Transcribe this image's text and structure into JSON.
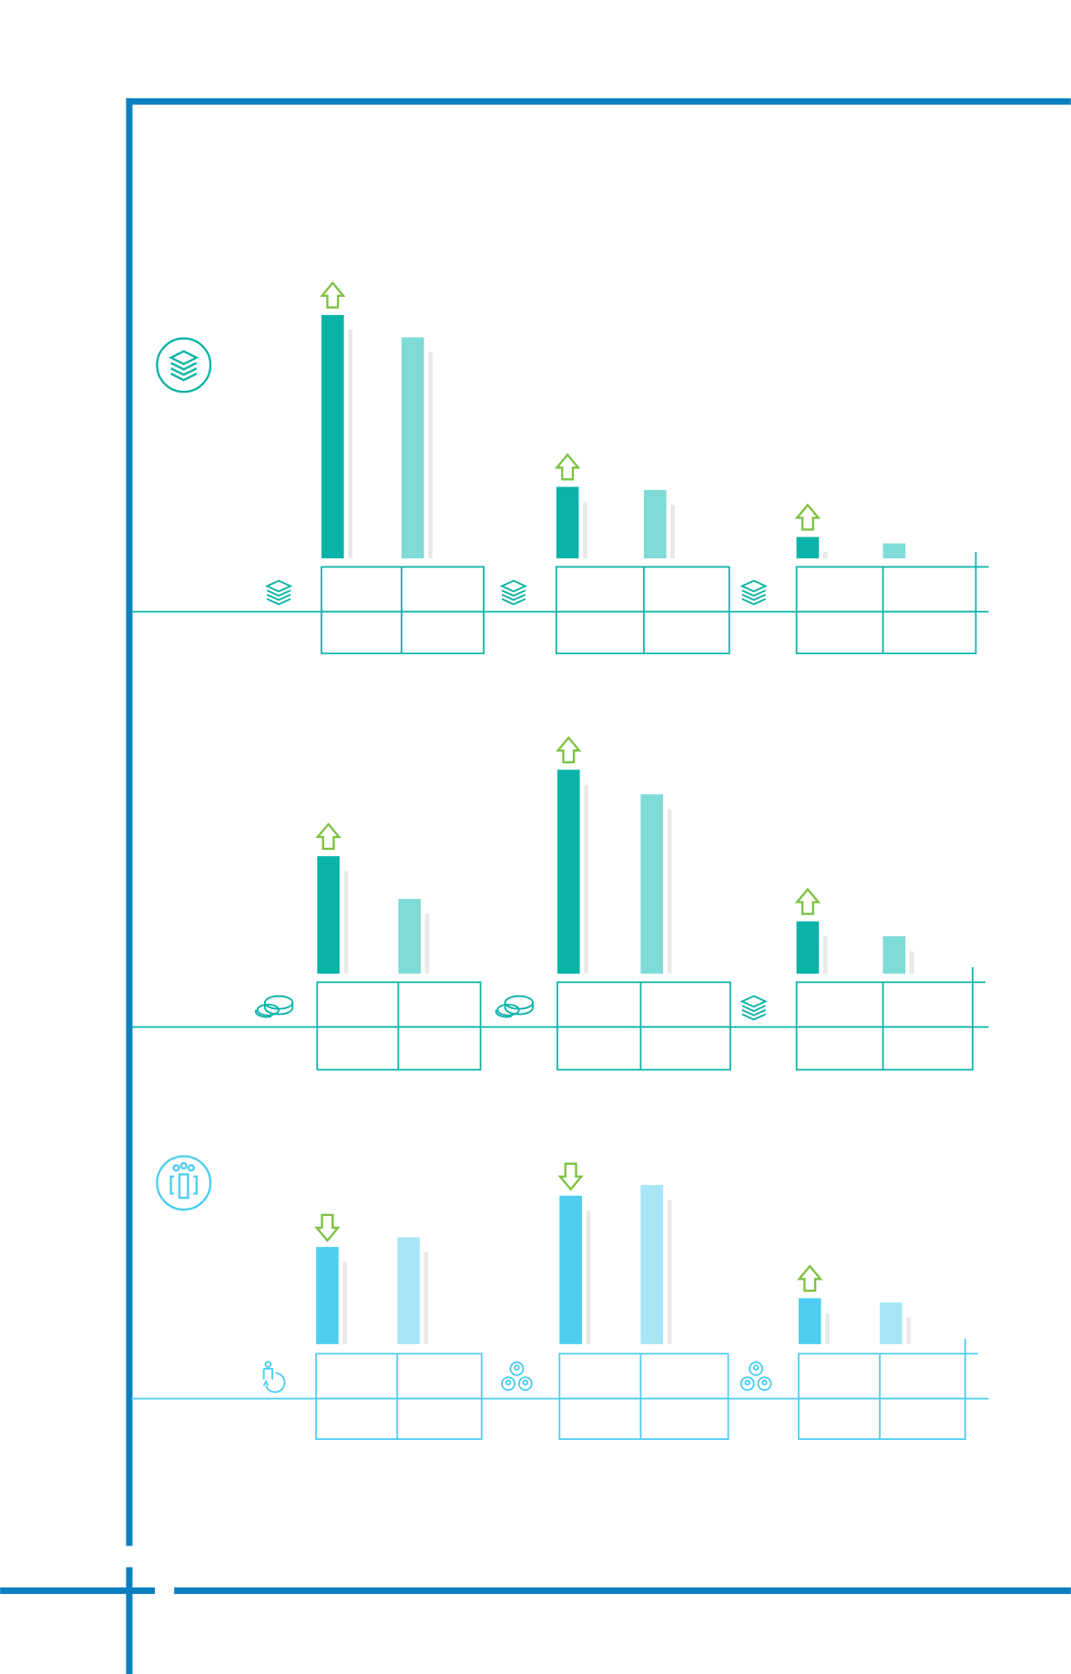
{
  "chart_data": [
    {
      "type": "bar",
      "categories": [
        null,
        null,
        null
      ],
      "series": [
        {
          "color": "#0ab3a8",
          "values": [
            228,
            67,
            20
          ]
        },
        {
          "color": "#7fdbd6",
          "values": [
            207,
            64,
            14
          ]
        }
      ],
      "trend": [
        "up",
        "up",
        "up"
      ],
      "arrow_color": "#7dc242"
    },
    {
      "type": "bar",
      "categories": [
        null,
        null,
        null
      ],
      "series": [
        {
          "color": "#0ab3a8",
          "values": [
            110,
            191,
            49
          ]
        },
        {
          "color": "#7fdbd6",
          "values": [
            70,
            168,
            35
          ]
        }
      ],
      "trend": [
        "up",
        "up",
        "up"
      ],
      "arrow_color": "#7dc242"
    },
    {
      "type": "bar",
      "categories": [
        null,
        null,
        null
      ],
      "series": [
        {
          "color": "#4ecdf0",
          "values": [
            91,
            139,
            43
          ]
        },
        {
          "color": "#a8e5f7",
          "values": [
            100,
            149,
            39
          ]
        }
      ],
      "trend": [
        "down",
        "down",
        "up"
      ],
      "arrow_color": "#7dc242"
    }
  ]
}
